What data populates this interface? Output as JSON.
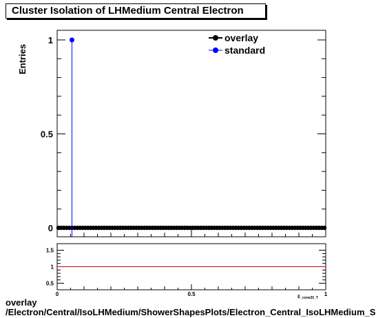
{
  "title": "Cluster Isolation of LHMedium Central  Electron",
  "footer": {
    "line1": "overlay",
    "line2": "/Electron/Central/IsoLHMedium/ShowerShapesPlots/Electron_Central_IsoLHMedium_S"
  },
  "chart_data": {
    "type": "line",
    "ylabel": "Entries",
    "xlabel": "E_cone20_T",
    "xlim": [
      0,
      1
    ],
    "ylim": [
      0,
      1
    ],
    "x_ticks": [
      "0",
      "0.5",
      "1"
    ],
    "y_ticks": [
      "0",
      "0.5",
      "1"
    ],
    "legend_position": "top-right",
    "series": [
      {
        "name": "overlay",
        "color": "#000000",
        "marker": "circle",
        "note": "all points at 0 across full range"
      },
      {
        "name": "standard",
        "color": "#0000ff",
        "marker": "circle",
        "points": [
          [
            0.055,
            1
          ]
        ]
      }
    ],
    "overlay_points_count": 100,
    "ratio": {
      "ylim": [
        0.3,
        1.7
      ],
      "y_ticks": [
        "0.5",
        "1",
        "1.5"
      ],
      "reference_line": 1,
      "reference_color": "#cc0000"
    }
  }
}
